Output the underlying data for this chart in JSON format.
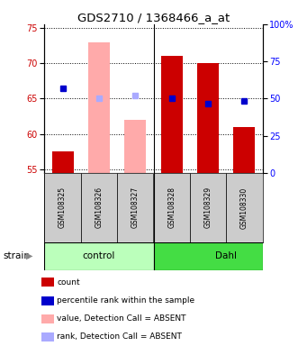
{
  "title": "GDS2710 / 1368466_a_at",
  "samples": [
    "GSM108325",
    "GSM108326",
    "GSM108327",
    "GSM108328",
    "GSM108329",
    "GSM108330"
  ],
  "ylim_left": [
    54.5,
    75.5
  ],
  "ylim_right": [
    0,
    100
  ],
  "yticks_left": [
    55,
    60,
    65,
    70,
    75
  ],
  "yticks_right": [
    0,
    25,
    50,
    75,
    100
  ],
  "bar_values": [
    57.5,
    73.0,
    62.0,
    71.0,
    70.0,
    61.0
  ],
  "bar_colors": [
    "#cc0000",
    "#ffaaaa",
    "#ffaaaa",
    "#cc0000",
    "#cc0000",
    "#cc0000"
  ],
  "dot_values": [
    66.5,
    65.0,
    65.5,
    65.0,
    64.3,
    64.7
  ],
  "dot_colors": [
    "#0000cc",
    "#aaaaff",
    "#aaaaff",
    "#0000cc",
    "#0000cc",
    "#0000cc"
  ],
  "bar_bottom": 54.5,
  "ctrl_color": "#bbffbb",
  "dahl_color": "#44dd44",
  "legend_items": [
    {
      "color": "#cc0000",
      "label": "count"
    },
    {
      "color": "#0000cc",
      "label": "percentile rank within the sample"
    },
    {
      "color": "#ffaaaa",
      "label": "value, Detection Call = ABSENT"
    },
    {
      "color": "#aaaaff",
      "label": "rank, Detection Call = ABSENT"
    }
  ]
}
